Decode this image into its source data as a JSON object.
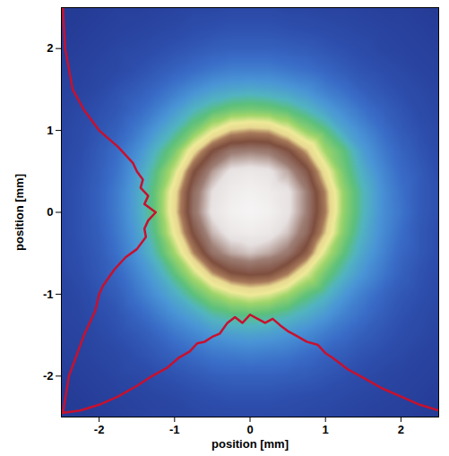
{
  "chart_data": {
    "type": "heatmap",
    "xlabel": "position [mm]",
    "ylabel": "position [mm]",
    "xlim": [
      -2.5,
      2.5
    ],
    "ylim": [
      -2.5,
      2.5
    ],
    "xticks": [
      -2,
      -1,
      0,
      1,
      2
    ],
    "yticks": [
      -2,
      -1,
      0,
      1,
      2
    ],
    "zlim": [
      0,
      100
    ],
    "cells": {
      "x": [
        -2.5,
        -2.25,
        -2.0,
        -1.75,
        -1.5,
        -1.25,
        -1.0,
        -0.75,
        -0.5,
        -0.25,
        0,
        0.25,
        0.5,
        0.75,
        1.0,
        1.25,
        1.5,
        1.75,
        2.0,
        2.25,
        2.5
      ],
      "y": [
        2.5,
        2.25,
        2.0,
        1.75,
        1.5,
        1.25,
        1.0,
        0.75,
        0.5,
        0.25,
        0,
        -0.25,
        -0.5,
        -0.75,
        -1.0,
        -1.25,
        -1.5,
        -1.75,
        -2.0,
        -2.25,
        -2.5
      ],
      "z": [
        [
          3,
          3,
          4,
          5,
          5,
          6,
          7,
          8,
          8,
          9,
          9,
          9,
          8,
          8,
          7,
          7,
          6,
          5,
          5,
          4,
          3
        ],
        [
          3,
          4,
          5,
          6,
          7,
          8,
          9,
          11,
          12,
          13,
          13,
          13,
          12,
          11,
          10,
          9,
          8,
          7,
          6,
          5,
          4
        ],
        [
          4,
          5,
          6,
          8,
          9,
          11,
          13,
          15,
          17,
          18,
          18,
          18,
          17,
          16,
          14,
          12,
          10,
          8,
          7,
          6,
          5
        ],
        [
          5,
          6,
          8,
          9,
          12,
          15,
          18,
          21,
          24,
          26,
          26,
          26,
          24,
          22,
          19,
          16,
          13,
          11,
          9,
          7,
          6
        ],
        [
          6,
          7,
          9,
          13,
          16,
          20,
          25,
          30,
          34,
          36,
          37,
          36,
          34,
          31,
          26,
          22,
          17,
          14,
          11,
          9,
          7
        ],
        [
          7,
          9,
          12,
          15,
          20,
          26,
          33,
          40,
          45,
          49,
          50,
          49,
          46,
          41,
          35,
          29,
          23,
          18,
          14,
          10,
          8
        ],
        [
          8,
          10,
          14,
          18,
          25,
          33,
          41,
          50,
          61,
          69,
          71,
          70,
          63,
          53,
          46,
          36,
          29,
          22,
          16,
          12,
          9
        ],
        [
          8,
          11,
          16,
          22,
          30,
          40,
          50,
          66,
          80,
          87,
          88,
          87,
          81,
          70,
          55,
          46,
          34,
          26,
          19,
          14,
          10
        ],
        [
          9,
          12,
          17,
          24,
          34,
          45,
          59,
          79,
          90,
          96,
          97,
          96,
          91,
          82,
          65,
          49,
          38,
          29,
          21,
          16,
          11
        ],
        [
          9,
          13,
          18,
          26,
          36,
          48,
          66,
          85,
          95,
          98,
          99,
          98,
          96,
          88,
          72,
          53,
          41,
          31,
          23,
          16,
          12
        ],
        [
          9,
          13,
          18,
          26,
          36,
          48,
          67,
          86,
          96,
          99,
          100,
          99,
          96,
          88,
          73,
          53,
          41,
          31,
          24,
          16,
          12
        ],
        [
          9,
          13,
          17,
          25,
          34,
          46,
          63,
          81,
          92,
          97,
          98,
          97,
          93,
          85,
          69,
          51,
          39,
          30,
          22,
          15,
          11
        ],
        [
          9,
          12,
          16,
          23,
          32,
          42,
          55,
          72,
          86,
          91,
          93,
          91,
          87,
          77,
          59,
          46,
          36,
          28,
          20,
          15,
          11
        ],
        [
          8,
          11,
          15,
          20,
          28,
          36,
          46,
          58,
          71,
          79,
          81,
          80,
          73,
          61,
          49,
          40,
          32,
          25,
          18,
          13,
          10
        ],
        [
          7,
          9,
          13,
          17,
          24,
          31,
          38,
          46,
          54,
          60,
          63,
          61,
          55,
          47,
          41,
          33,
          26,
          20,
          15,
          12,
          9
        ],
        [
          7,
          8,
          11,
          14,
          19,
          25,
          31,
          36,
          42,
          45,
          46,
          45,
          42,
          38,
          33,
          27,
          22,
          17,
          13,
          10,
          8
        ],
        [
          6,
          7,
          9,
          12,
          15,
          19,
          24,
          28,
          32,
          34,
          35,
          34,
          32,
          29,
          25,
          21,
          17,
          14,
          11,
          9,
          7
        ],
        [
          5,
          6,
          8,
          9,
          12,
          15,
          18,
          21,
          24,
          25,
          26,
          25,
          24,
          21,
          18,
          16,
          13,
          11,
          9,
          7,
          6
        ],
        [
          4,
          5,
          6,
          8,
          9,
          11,
          13,
          15,
          17,
          18,
          18,
          18,
          17,
          16,
          14,
          12,
          10,
          8,
          7,
          6,
          5
        ],
        [
          3,
          4,
          5,
          6,
          7,
          8,
          9,
          11,
          12,
          13,
          13,
          13,
          12,
          11,
          10,
          9,
          8,
          7,
          6,
          5,
          4
        ],
        [
          3,
          3,
          4,
          5,
          6,
          7,
          7,
          8,
          9,
          9,
          9,
          9,
          9,
          8,
          8,
          7,
          6,
          5,
          5,
          4,
          3
        ]
      ]
    },
    "series": [
      {
        "type": "line",
        "color": "#c8102e",
        "x": [
          -2.5,
          -2.25,
          -2.0,
          -1.75,
          -1.5,
          -1.3,
          -1.1,
          -0.95,
          -0.8,
          -0.7,
          -0.6,
          -0.5,
          -0.4,
          -0.3,
          -0.2,
          -0.1,
          0,
          0.1,
          0.2,
          0.3,
          0.4,
          0.5,
          0.6,
          0.75,
          0.9,
          1.0,
          1.1,
          1.3,
          1.5,
          1.75,
          2.0,
          2.25,
          2.5
        ],
        "y": [
          -2.45,
          -2.42,
          -2.35,
          -2.25,
          -2.12,
          -2.0,
          -1.9,
          -1.78,
          -1.7,
          -1.6,
          -1.58,
          -1.52,
          -1.48,
          -1.35,
          -1.28,
          -1.35,
          -1.25,
          -1.3,
          -1.35,
          -1.3,
          -1.38,
          -1.45,
          -1.5,
          -1.58,
          -1.62,
          -1.72,
          -1.78,
          -1.92,
          -2.02,
          -2.15,
          -2.25,
          -2.35,
          -2.42
        ]
      },
      {
        "type": "line",
        "color": "#c8102e",
        "x": [
          -2.48,
          -2.45,
          -2.35,
          -2.2,
          -2.0,
          -1.75,
          -1.55,
          -1.5,
          -1.42,
          -1.45,
          -1.35,
          -1.4,
          -1.25,
          -1.35,
          -1.4,
          -1.38,
          -1.5,
          -1.65,
          -1.8,
          -1.95,
          -2.0,
          -2.05,
          -2.2,
          -2.4,
          -2.48
        ],
        "y": [
          2.5,
          2.0,
          1.5,
          1.25,
          1.0,
          0.8,
          0.6,
          0.5,
          0.4,
          0.3,
          0.2,
          0.1,
          0,
          -0.1,
          -0.2,
          -0.3,
          -0.45,
          -0.55,
          -0.7,
          -0.9,
          -1.0,
          -1.2,
          -1.5,
          -2.0,
          -2.45
        ]
      }
    ]
  }
}
